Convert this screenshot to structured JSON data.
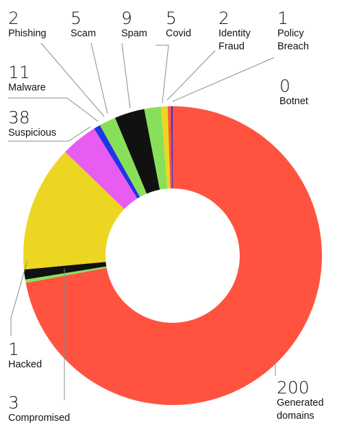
{
  "chart_data": {
    "type": "pie",
    "variant": "donut",
    "slices": [
      {
        "label": "Generated domains",
        "value": 200,
        "color": "#ff5340"
      },
      {
        "label": "Hacked",
        "value": 1,
        "color": "#88e05a"
      },
      {
        "label": "Compromised",
        "value": 3,
        "color": "#111111"
      },
      {
        "label": "Suspicious",
        "value": 38,
        "color": "#ecd621"
      },
      {
        "label": "Malware",
        "value": 11,
        "color": "#e85cf2"
      },
      {
        "label": "Phishing",
        "value": 2,
        "color": "#2136e3"
      },
      {
        "label": "Scam",
        "value": 5,
        "color": "#88e05a"
      },
      {
        "label": "Spam",
        "value": 9,
        "color": "#111111"
      },
      {
        "label": "Covid",
        "value": 5,
        "color": "#88e05a"
      },
      {
        "label": "Identity Fraud",
        "value": 2,
        "color": "#ecd621"
      },
      {
        "label": "Policy Breach",
        "value": 1,
        "color": "#ff5340"
      },
      {
        "label": "Botnet",
        "value": 0,
        "color": "#2136e3"
      }
    ]
  }
}
